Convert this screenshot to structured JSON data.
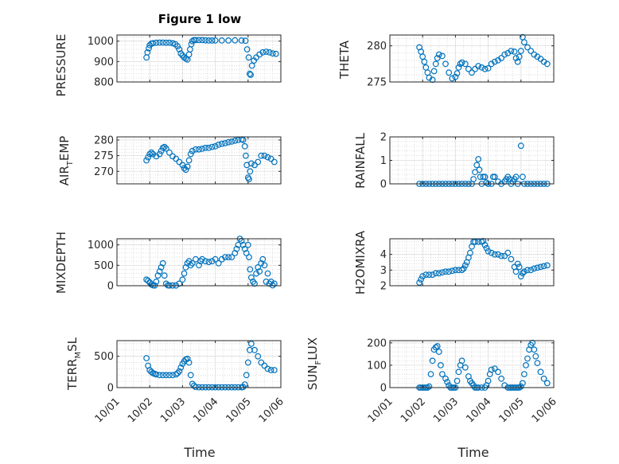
{
  "figure": {
    "title": "Figure 1 low",
    "marker_color": "#0072BD"
  },
  "chart_data": [
    {
      "type": "scatter",
      "ylabel": "PRESSURE",
      "ylim": [
        800,
        1030
      ],
      "yticks": [
        800,
        900,
        1000
      ],
      "yticklabels": [
        "800",
        "900",
        "1000"
      ],
      "x": [
        1.9,
        1.93,
        1.97,
        2.0,
        2.05,
        2.1,
        2.2,
        2.3,
        2.4,
        2.5,
        2.6,
        2.7,
        2.78,
        2.85,
        2.9,
        2.95,
        3.0,
        3.05,
        3.1,
        3.15,
        3.2,
        3.23,
        3.27,
        3.3,
        3.35,
        3.4,
        3.5,
        3.6,
        3.7,
        3.8,
        3.9,
        4.0,
        4.2,
        4.4,
        4.6,
        4.8,
        4.92,
        4.97,
        5.02,
        5.05,
        5.08,
        5.12,
        5.18,
        5.25,
        5.35,
        5.45,
        5.55,
        5.65,
        5.75,
        5.85
      ],
      "y": [
        920,
        945,
        965,
        980,
        988,
        990,
        992,
        993,
        993,
        992,
        992,
        990,
        985,
        975,
        960,
        940,
        930,
        920,
        915,
        910,
        935,
        960,
        985,
        1000,
        1005,
        1005,
        1005,
        1005,
        1004,
        1003,
        1003,
        1003,
        1003,
        1003,
        1004,
        1003,
        1002,
        960,
        920,
        840,
        835,
        880,
        905,
        920,
        935,
        945,
        948,
        945,
        940,
        938
      ]
    },
    {
      "type": "scatter",
      "ylabel": "THETA",
      "ylim": [
        275,
        281.5
      ],
      "yticks": [
        275,
        280
      ],
      "yticklabels": [
        "275",
        "280"
      ],
      "x": [
        1.9,
        1.95,
        2.0,
        2.05,
        2.1,
        2.15,
        2.2,
        2.3,
        2.35,
        2.4,
        2.45,
        2.5,
        2.6,
        2.7,
        2.8,
        2.9,
        3.0,
        3.05,
        3.1,
        3.15,
        3.2,
        3.3,
        3.4,
        3.5,
        3.6,
        3.7,
        3.8,
        3.9,
        4.0,
        4.1,
        4.2,
        4.3,
        4.4,
        4.5,
        4.6,
        4.7,
        4.8,
        4.85,
        4.9,
        4.95,
        5.0,
        5.05,
        5.1,
        5.2,
        5.3,
        5.4,
        5.5,
        5.6,
        5.7,
        5.8
      ],
      "y": [
        279.8,
        279.2,
        278.5,
        277.8,
        277.0,
        276.3,
        275.6,
        275.3,
        276.5,
        277.5,
        278.3,
        278.8,
        278.6,
        277.5,
        276.3,
        275.5,
        275.7,
        276.2,
        277.0,
        277.5,
        277.7,
        277.5,
        276.8,
        276.3,
        276.8,
        277.2,
        277.0,
        276.8,
        276.9,
        277.5,
        277.8,
        278.0,
        278.3,
        278.8,
        279.0,
        279.3,
        279.2,
        278.3,
        277.8,
        278.5,
        279.3,
        281.2,
        280.5,
        279.8,
        279.3,
        278.8,
        278.5,
        278.2,
        277.8,
        277.5
      ]
    },
    {
      "type": "scatter",
      "ylabel": "AIR_TEMP",
      "ylim": [
        266,
        281
      ],
      "yticks": [
        270,
        275,
        280
      ],
      "yticklabels": [
        "270",
        "275",
        "280"
      ],
      "x": [
        1.9,
        1.95,
        2.0,
        2.05,
        2.1,
        2.2,
        2.3,
        2.35,
        2.4,
        2.45,
        2.5,
        2.6,
        2.7,
        2.8,
        2.9,
        3.0,
        3.05,
        3.1,
        3.15,
        3.2,
        3.25,
        3.3,
        3.4,
        3.5,
        3.6,
        3.7,
        3.8,
        3.9,
        4.0,
        4.1,
        4.2,
        4.3,
        4.4,
        4.5,
        4.6,
        4.7,
        4.8,
        4.85,
        4.9,
        4.93,
        4.96,
        5.0,
        5.03,
        5.06,
        5.1,
        5.2,
        5.3,
        5.4,
        5.5,
        5.6,
        5.7,
        5.8
      ],
      "y": [
        273.5,
        274.5,
        275.5,
        276.0,
        275.5,
        274.8,
        275.5,
        276.5,
        277.5,
        277.8,
        277.3,
        276.0,
        274.8,
        274.0,
        273.0,
        272.0,
        271.0,
        270.5,
        271.5,
        273.5,
        275.5,
        276.5,
        277.0,
        277.0,
        277.2,
        277.5,
        277.5,
        277.8,
        278.0,
        278.5,
        278.8,
        279.0,
        279.3,
        279.5,
        279.8,
        280.0,
        280.2,
        280.0,
        278.0,
        275.0,
        272.0,
        268.0,
        267.5,
        270.0,
        272.5,
        272.0,
        273.0,
        275.0,
        275.0,
        274.5,
        274.0,
        273.0
      ]
    },
    {
      "type": "scatter",
      "ylabel": "RAINFALL",
      "ylim": [
        0,
        2
      ],
      "yticks": [
        0,
        1,
        2
      ],
      "yticklabels": [
        "0",
        "1",
        "2"
      ],
      "x": [
        1.9,
        2.0,
        2.1,
        2.2,
        2.3,
        2.4,
        2.5,
        2.6,
        2.7,
        2.8,
        2.9,
        3.0,
        3.1,
        3.2,
        3.3,
        3.4,
        3.5,
        3.55,
        3.6,
        3.65,
        3.7,
        3.73,
        3.76,
        3.8,
        3.85,
        3.9,
        3.95,
        4.0,
        4.1,
        4.15,
        4.2,
        4.3,
        4.4,
        4.5,
        4.55,
        4.6,
        4.65,
        4.7,
        4.75,
        4.8,
        4.85,
        4.9,
        5.0,
        5.05,
        5.1,
        5.2,
        5.3,
        5.4,
        5.5,
        5.6,
        5.7,
        5.8
      ],
      "y": [
        0,
        0,
        0,
        0,
        0,
        0,
        0,
        0,
        0,
        0,
        0,
        0,
        0,
        0,
        0,
        0,
        0,
        0.2,
        0.5,
        0.8,
        1.05,
        0.6,
        0.3,
        0,
        0.3,
        0.3,
        0.05,
        0,
        0,
        0.3,
        0.3,
        0.1,
        0,
        0.1,
        0.2,
        0.3,
        0.2,
        0,
        0.1,
        0.2,
        0.3,
        0,
        1.62,
        0.3,
        0,
        0,
        0,
        0,
        0,
        0,
        0,
        0
      ]
    },
    {
      "type": "scatter",
      "ylabel": "MIXDEPTH",
      "ylim": [
        0,
        1150
      ],
      "yticks": [
        0,
        500,
        1000
      ],
      "yticklabels": [
        "0",
        "500",
        "1000"
      ],
      "x": [
        1.9,
        1.95,
        2.0,
        2.05,
        2.1,
        2.15,
        2.2,
        2.25,
        2.3,
        2.35,
        2.4,
        2.45,
        2.5,
        2.55,
        2.6,
        2.7,
        2.8,
        2.9,
        3.0,
        3.05,
        3.1,
        3.15,
        3.2,
        3.25,
        3.3,
        3.4,
        3.5,
        3.55,
        3.6,
        3.7,
        3.8,
        3.9,
        4.0,
        4.1,
        4.2,
        4.3,
        4.4,
        4.5,
        4.6,
        4.65,
        4.7,
        4.75,
        4.8,
        4.85,
        4.9,
        4.95,
        5.0,
        5.03,
        5.06,
        5.1,
        5.15,
        5.2,
        5.25,
        5.3,
        5.35,
        5.4,
        5.45,
        5.5,
        5.55,
        5.6,
        5.65,
        5.7,
        5.75,
        5.8
      ],
      "y": [
        150,
        120,
        80,
        30,
        10,
        5,
        100,
        250,
        350,
        450,
        550,
        250,
        50,
        10,
        5,
        5,
        5,
        50,
        150,
        300,
        450,
        550,
        600,
        500,
        550,
        650,
        500,
        600,
        650,
        600,
        580,
        600,
        650,
        550,
        650,
        700,
        700,
        700,
        800,
        900,
        1000,
        1150,
        1100,
        1000,
        900,
        800,
        1000,
        700,
        400,
        200,
        100,
        50,
        300,
        450,
        350,
        550,
        650,
        500,
        100,
        300,
        50,
        100,
        10,
        50
      ]
    },
    {
      "type": "scatter",
      "ylabel": "H2OMIXRA",
      "ylim": [
        2,
        5
      ],
      "yticks": [
        2,
        3,
        4
      ],
      "yticklabels": [
        "2",
        "3",
        "4"
      ],
      "x": [
        1.9,
        1.95,
        2.0,
        2.1,
        2.2,
        2.3,
        2.4,
        2.5,
        2.6,
        2.7,
        2.8,
        2.9,
        3.0,
        3.1,
        3.2,
        3.25,
        3.3,
        3.35,
        3.4,
        3.45,
        3.5,
        3.55,
        3.6,
        3.7,
        3.8,
        3.85,
        3.9,
        3.95,
        4.0,
        4.1,
        4.2,
        4.3,
        4.4,
        4.5,
        4.6,
        4.7,
        4.8,
        4.85,
        4.9,
        4.95,
        5.0,
        5.05,
        5.1,
        5.2,
        5.3,
        5.4,
        5.5,
        5.6,
        5.7,
        5.8
      ],
      "y": [
        2.2,
        2.4,
        2.6,
        2.7,
        2.7,
        2.7,
        2.8,
        2.8,
        2.85,
        2.9,
        2.9,
        2.95,
        3.0,
        3.0,
        3.0,
        3.1,
        3.3,
        3.5,
        3.8,
        4.1,
        4.5,
        4.8,
        4.8,
        4.8,
        4.8,
        4.85,
        4.6,
        4.4,
        4.2,
        4.1,
        4.0,
        4.0,
        3.9,
        3.9,
        4.1,
        3.7,
        3.2,
        2.9,
        3.4,
        3.2,
        2.6,
        2.8,
        2.9,
        3.0,
        3.0,
        3.1,
        3.15,
        3.2,
        3.25,
        3.3
      ]
    },
    {
      "type": "scatter",
      "ylabel": "TERR_MSL",
      "ylim": [
        0,
        750
      ],
      "yticks": [
        0,
        500
      ],
      "yticklabels": [
        "0",
        "500"
      ],
      "x": [
        1.9,
        1.95,
        2.0,
        2.05,
        2.1,
        2.15,
        2.2,
        2.3,
        2.4,
        2.5,
        2.6,
        2.7,
        2.8,
        2.85,
        2.9,
        2.95,
        3.0,
        3.05,
        3.1,
        3.15,
        3.2,
        3.25,
        3.3,
        3.35,
        3.4,
        3.5,
        3.6,
        3.7,
        3.8,
        3.9,
        4.0,
        4.1,
        4.2,
        4.3,
        4.4,
        4.5,
        4.6,
        4.7,
        4.8,
        4.85,
        4.9,
        4.95,
        5.0,
        5.05,
        5.1,
        5.2,
        5.3,
        5.4,
        5.5,
        5.6,
        5.7,
        5.8
      ],
      "y": [
        470,
        350,
        280,
        250,
        230,
        220,
        210,
        200,
        200,
        200,
        200,
        200,
        210,
        230,
        260,
        320,
        380,
        420,
        450,
        460,
        400,
        200,
        60,
        30,
        10,
        5,
        5,
        5,
        5,
        5,
        5,
        5,
        5,
        5,
        5,
        5,
        5,
        5,
        5,
        10,
        50,
        200,
        400,
        600,
        700,
        600,
        500,
        400,
        350,
        300,
        280,
        280
      ]
    },
    {
      "type": "scatter",
      "ylabel": "SUN_FLUX",
      "ylim": [
        0,
        210
      ],
      "yticks": [
        0,
        100,
        200
      ],
      "yticklabels": [
        "0",
        "100",
        "200"
      ],
      "x": [
        1.9,
        1.95,
        2.0,
        2.05,
        2.1,
        2.15,
        2.2,
        2.25,
        2.3,
        2.35,
        2.4,
        2.45,
        2.5,
        2.55,
        2.6,
        2.7,
        2.75,
        2.8,
        2.85,
        2.9,
        2.95,
        3.0,
        3.05,
        3.1,
        3.15,
        3.2,
        3.3,
        3.4,
        3.45,
        3.5,
        3.55,
        3.6,
        3.65,
        3.7,
        3.8,
        3.9,
        3.95,
        4.0,
        4.05,
        4.1,
        4.2,
        4.3,
        4.4,
        4.5,
        4.6,
        4.65,
        4.7,
        4.75,
        4.8,
        4.85,
        4.9,
        4.95,
        5.0,
        5.05,
        5.1,
        5.15,
        5.2,
        5.25,
        5.3,
        5.35,
        5.4,
        5.45,
        5.5,
        5.6,
        5.7,
        5.8
      ],
      "y": [
        0,
        0,
        0,
        0,
        0,
        0,
        5,
        60,
        120,
        170,
        180,
        185,
        160,
        100,
        60,
        40,
        25,
        10,
        0,
        0,
        0,
        0,
        30,
        70,
        100,
        120,
        90,
        50,
        30,
        20,
        10,
        0,
        0,
        0,
        0,
        0,
        10,
        30,
        60,
        80,
        85,
        70,
        40,
        10,
        0,
        0,
        0,
        0,
        0,
        0,
        0,
        0,
        5,
        20,
        60,
        100,
        130,
        170,
        190,
        200,
        170,
        140,
        110,
        70,
        40,
        20
      ]
    }
  ],
  "xaxis": {
    "label": "Time",
    "ticks": [
      1,
      2,
      3,
      4,
      5,
      6
    ],
    "ticklabels": [
      "10/01",
      "10/02",
      "10/03",
      "10/04",
      "10/05",
      "10/06"
    ],
    "xlim": [
      1,
      6
    ]
  }
}
